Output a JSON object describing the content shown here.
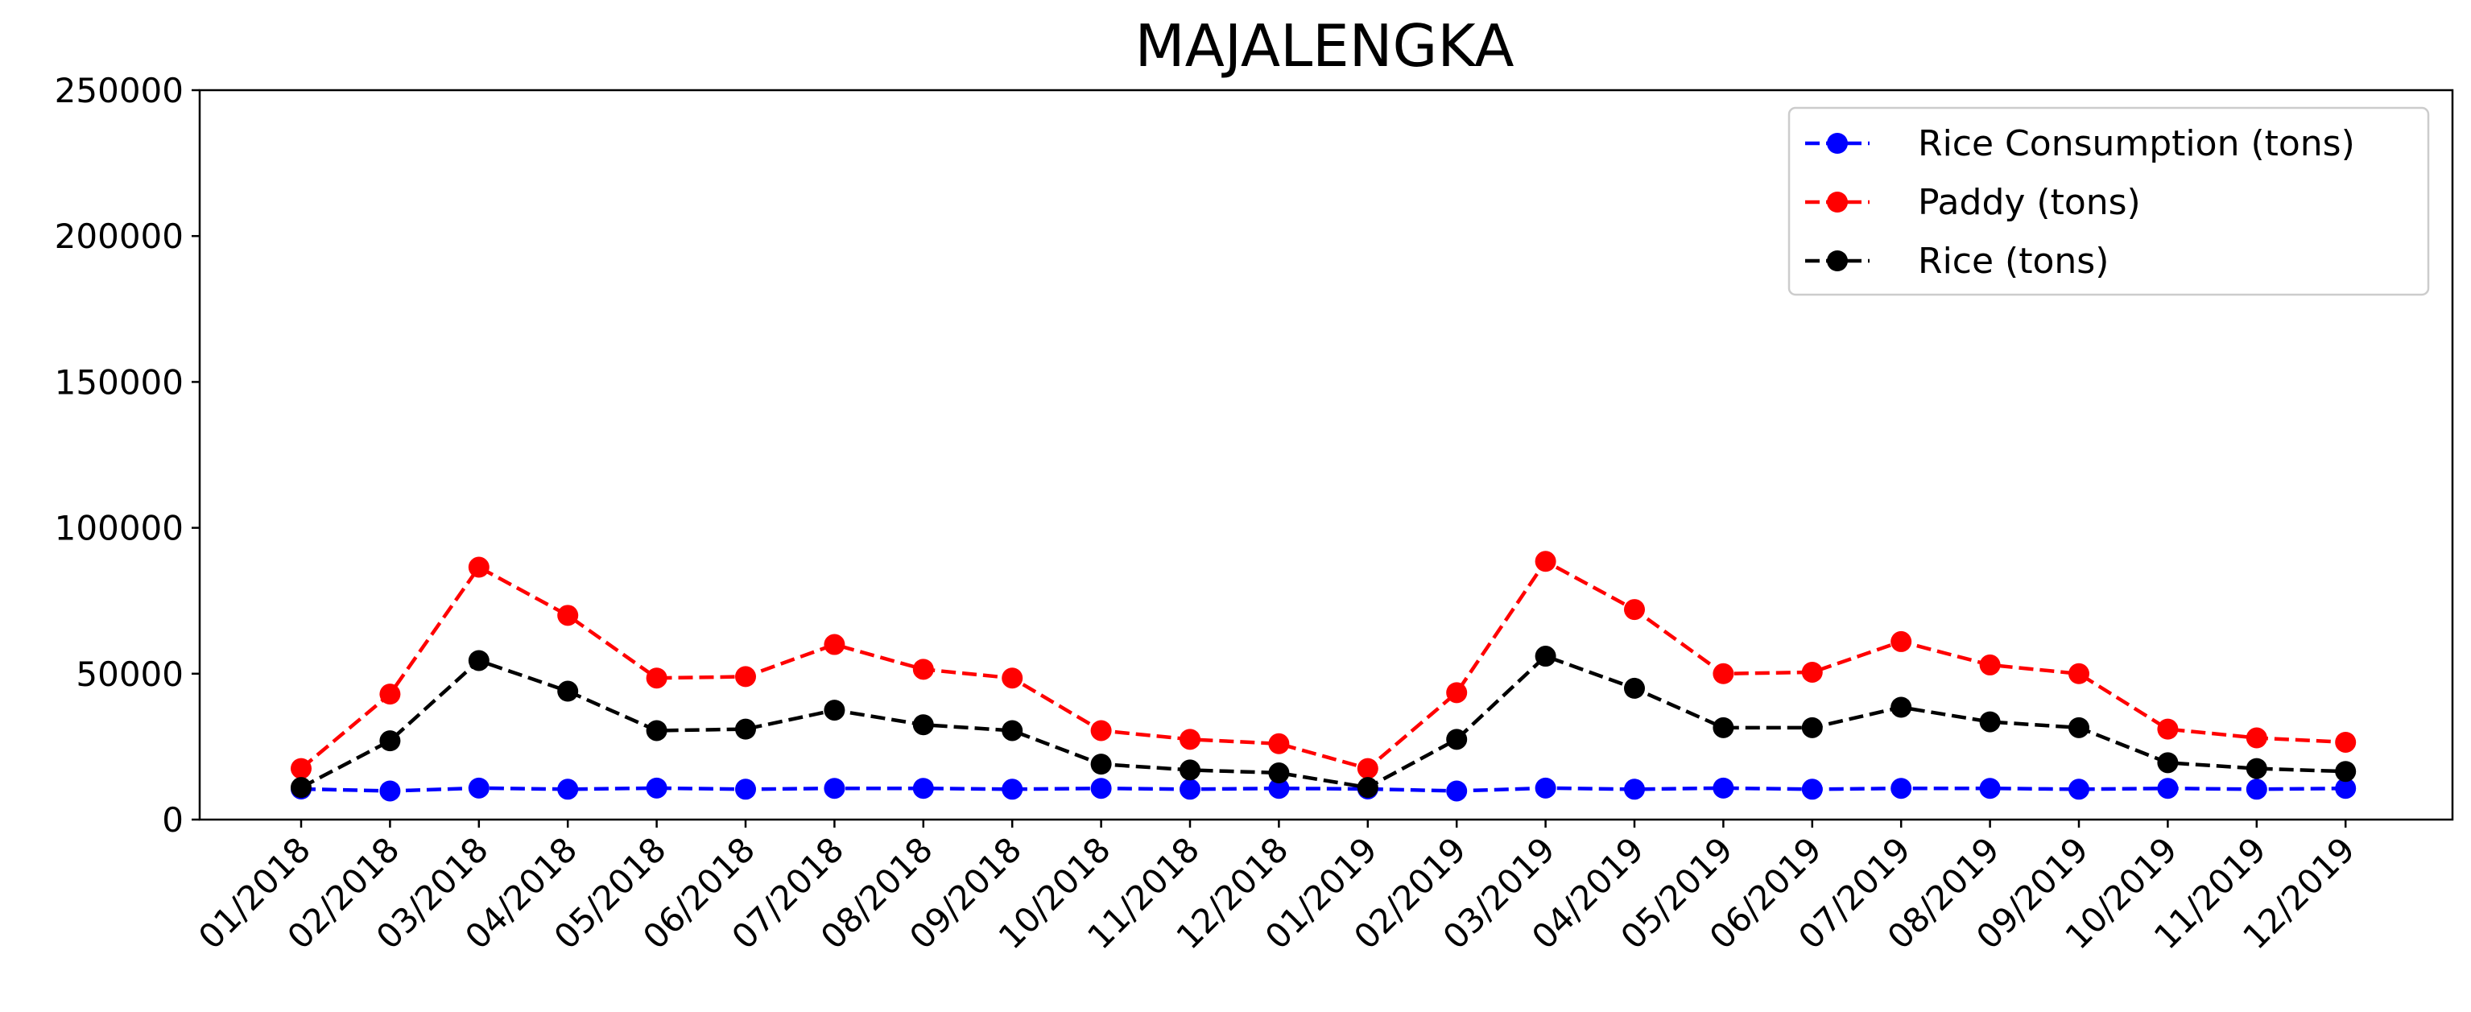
{
  "chart_data": {
    "type": "line",
    "title": "MAJALENGKA",
    "xlabel": "",
    "ylabel": "",
    "ylim": [
      0,
      250000
    ],
    "yticks": [
      0,
      50000,
      100000,
      150000,
      200000,
      250000
    ],
    "ytick_labels": [
      "0",
      "50000",
      "100000",
      "150000",
      "200000",
      "250000"
    ],
    "categories": [
      "01/2018",
      "02/2018",
      "03/2018",
      "04/2018",
      "05/2018",
      "06/2018",
      "07/2018",
      "08/2018",
      "09/2018",
      "10/2018",
      "11/2018",
      "12/2018",
      "01/2019",
      "02/2019",
      "03/2019",
      "04/2019",
      "05/2019",
      "06/2019",
      "07/2019",
      "08/2019",
      "09/2019",
      "10/2019",
      "11/2019",
      "12/2019"
    ],
    "grid": false,
    "legend_position": "top-right",
    "series": [
      {
        "name": "Rice Consumption (tons)",
        "color": "#0000ff",
        "line_style": "dashed",
        "marker": "circle",
        "values": [
          10500,
          9800,
          10800,
          10400,
          10800,
          10400,
          10700,
          10700,
          10400,
          10700,
          10400,
          10700,
          10500,
          9800,
          10800,
          10400,
          10800,
          10400,
          10700,
          10700,
          10400,
          10700,
          10400,
          10700
        ]
      },
      {
        "name": "Paddy (tons)",
        "color": "#ff0000",
        "line_style": "dashed",
        "marker": "circle",
        "values": [
          17500,
          43000,
          86500,
          70000,
          48500,
          49000,
          60000,
          51500,
          48500,
          30500,
          27500,
          26000,
          17500,
          43500,
          88500,
          72000,
          50000,
          50500,
          61000,
          53000,
          50000,
          31000,
          28000,
          26500
        ]
      },
      {
        "name": "Rice (tons)",
        "color": "#000000",
        "line_style": "dashed",
        "marker": "circle",
        "values": [
          11000,
          27000,
          54500,
          44000,
          30500,
          31000,
          37500,
          32500,
          30500,
          19000,
          17000,
          16000,
          11000,
          27500,
          56000,
          45000,
          31500,
          31500,
          38500,
          33500,
          31500,
          19500,
          17500,
          16500
        ]
      }
    ]
  }
}
